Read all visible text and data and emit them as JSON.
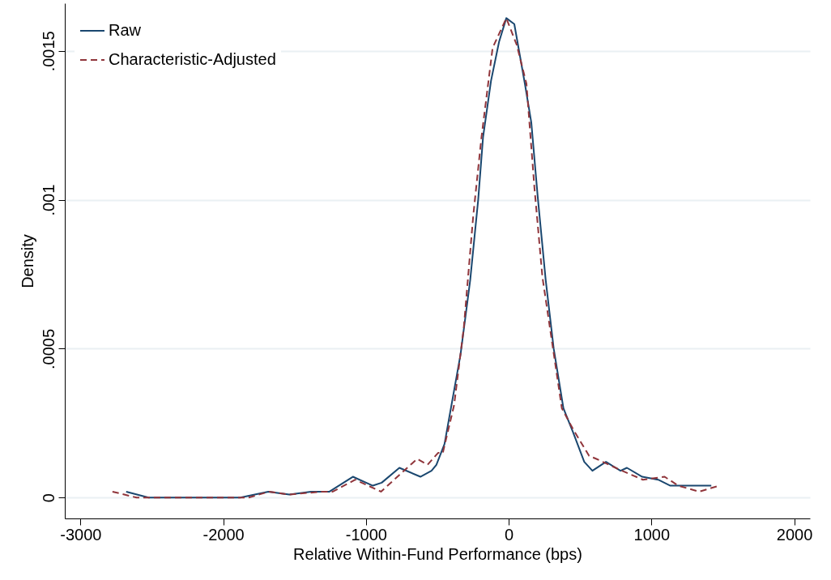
{
  "chart_data": {
    "type": "line",
    "xlabel": "Relative Within-Fund Performance (bps)",
    "ylabel": "Density",
    "xlim": [
      -3110,
      2110
    ],
    "ylim": [
      -7e-05,
      0.00166
    ],
    "xticks": [
      -3000,
      -2000,
      -1000,
      0,
      1000,
      2000
    ],
    "yticks": [
      0,
      {
        "value": 0.0005,
        "label": ".0005"
      },
      {
        "value": 0.001,
        "label": ".001"
      },
      {
        "value": 0.0015,
        "label": ".0015"
      }
    ],
    "grid": "y",
    "legend": "top left",
    "marker": "none",
    "series": [
      {
        "name": "Raw",
        "color": "#1a476f",
        "line_style": "solid",
        "x": [
          -2680,
          -2523,
          -1881,
          -1684,
          -1537,
          -1385,
          -1256,
          -1092,
          -952,
          -890,
          -766,
          -619,
          -541,
          -507,
          -450,
          -338,
          -270,
          -214,
          -180,
          -124,
          -68,
          -17,
          39,
          113,
          158,
          203,
          259,
          315,
          383,
          450,
          529,
          586,
          681,
          783,
          828,
          935,
          1047,
          1132,
          1278,
          1346,
          1419
        ],
        "values": [
          2e-05,
          0,
          0,
          2e-05,
          1e-05,
          2e-05,
          2e-05,
          7e-05,
          4e-05,
          5e-05,
          0.0001,
          7e-05,
          9e-05,
          0.00011,
          0.00018,
          0.00048,
          0.00073,
          0.001,
          0.00121,
          0.0014,
          0.00153,
          0.00161,
          0.00159,
          0.00139,
          0.00126,
          0.00101,
          0.00073,
          0.0005,
          0.0003,
          0.00022,
          0.00012,
          9e-05,
          0.00012,
          9e-05,
          0.0001,
          7e-05,
          6e-05,
          4e-05,
          4e-05,
          4e-05,
          4e-05
        ]
      },
      {
        "name": "Characteristic-Adjusted",
        "color": "#90353b",
        "line_style": "dashed",
        "x": [
          -2776,
          -2607,
          -1824,
          -1678,
          -1537,
          -1312,
          -1233,
          -1075,
          -895,
          -642,
          -569,
          -495,
          -462,
          -383,
          -315,
          -248,
          -191,
          -113,
          -17,
          56,
          124,
          180,
          236,
          304,
          372,
          450,
          563,
          614,
          794,
          940,
          1092,
          1188,
          1334,
          1475
        ],
        "values": [
          2e-05,
          0,
          0,
          2e-05,
          1e-05,
          2e-05,
          2e-05,
          6e-05,
          2e-05,
          0.00013,
          0.00011,
          0.00015,
          0.00015,
          0.00031,
          0.00057,
          0.00095,
          0.00121,
          0.00151,
          0.00161,
          0.00152,
          0.00139,
          0.00104,
          0.00074,
          0.00052,
          0.0003,
          0.00023,
          0.00014,
          0.00013,
          9e-05,
          6e-05,
          7e-05,
          4e-05,
          2e-05,
          4e-05
        ]
      }
    ]
  }
}
